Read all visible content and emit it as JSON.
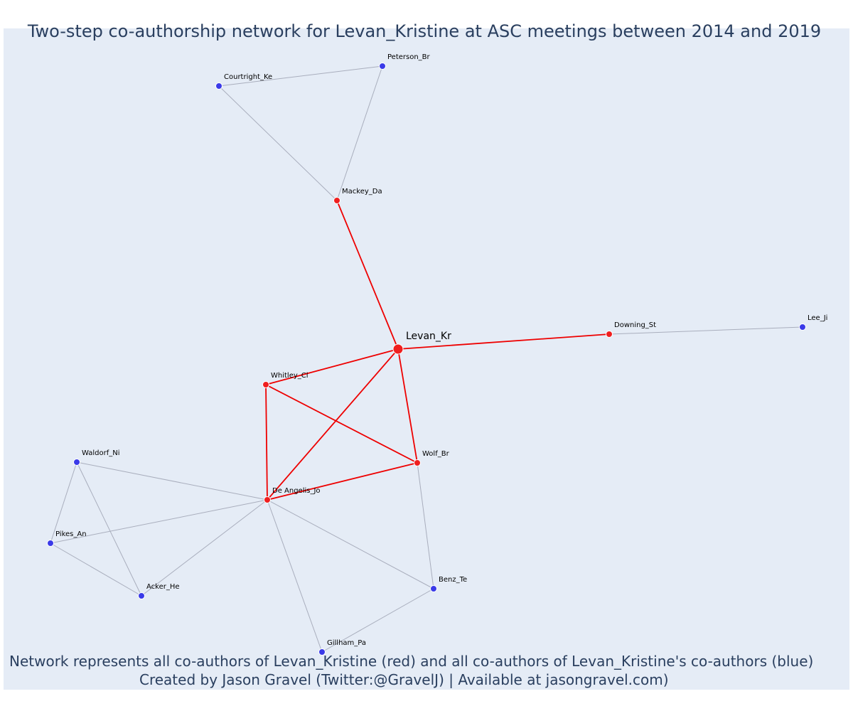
{
  "title": "Two-step co-authorship network for Levan_Kristine at ASC meetings between 2014 and 2019",
  "caption": {
    "line1": "Network represents all co-authors of Levan_Kristine (red) and all co-authors of Levan_Kristine's co-authors (blue)",
    "line2": "Created by Jason Gravel (Twitter:@GravelJ) | Available at jasongravel.com)"
  },
  "colors": {
    "background": "#e5ecf6",
    "coauthor": "#ef1f1f",
    "second_step": "#3a3ae8",
    "edge_direct": "#ee0000",
    "edge_indirect": "#a9aebd",
    "text": "#2a3f5f"
  },
  "nodes": [
    {
      "id": "Levan_Kr",
      "label": "Levan_Kr",
      "group": "focal"
    },
    {
      "id": "Mackey_Da",
      "label": "Mackey_Da",
      "group": "coauthor"
    },
    {
      "id": "Downing_St",
      "label": "Downing_St",
      "group": "coauthor"
    },
    {
      "id": "Whitley_Cl",
      "label": "Whitley_Cl",
      "group": "coauthor"
    },
    {
      "id": "Wolf_Br",
      "label": "Wolf_Br",
      "group": "coauthor"
    },
    {
      "id": "De Angelis_Jo",
      "label": "De Angelis_Jo",
      "group": "coauthor"
    },
    {
      "id": "Peterson_Br",
      "label": "Peterson_Br",
      "group": "second"
    },
    {
      "id": "Courtright_Ke",
      "label": "Courtright_Ke",
      "group": "second"
    },
    {
      "id": "Lee_Ji",
      "label": "Lee_Ji",
      "group": "second"
    },
    {
      "id": "Waldorf_Ni",
      "label": "Waldorf_Ni",
      "group": "second"
    },
    {
      "id": "Pikes_An",
      "label": "Pikes_An",
      "group": "second"
    },
    {
      "id": "Acker_He",
      "label": "Acker_He",
      "group": "second"
    },
    {
      "id": "Benz_Te",
      "label": "Benz_Te",
      "group": "second"
    },
    {
      "id": "Gillham_Pa",
      "label": "Gillham_Pa",
      "group": "second"
    }
  ],
  "edges": [
    {
      "source": "Levan_Kr",
      "target": "Mackey_Da",
      "type": "direct"
    },
    {
      "source": "Levan_Kr",
      "target": "Downing_St",
      "type": "direct"
    },
    {
      "source": "Levan_Kr",
      "target": "Whitley_Cl",
      "type": "direct"
    },
    {
      "source": "Levan_Kr",
      "target": "Wolf_Br",
      "type": "direct"
    },
    {
      "source": "Levan_Kr",
      "target": "De Angelis_Jo",
      "type": "direct"
    },
    {
      "source": "Whitley_Cl",
      "target": "Wolf_Br",
      "type": "direct"
    },
    {
      "source": "Whitley_Cl",
      "target": "De Angelis_Jo",
      "type": "direct"
    },
    {
      "source": "Wolf_Br",
      "target": "De Angelis_Jo",
      "type": "direct"
    },
    {
      "source": "Courtright_Ke",
      "target": "Peterson_Br",
      "type": "indirect"
    },
    {
      "source": "Courtright_Ke",
      "target": "Mackey_Da",
      "type": "indirect"
    },
    {
      "source": "Peterson_Br",
      "target": "Mackey_Da",
      "type": "indirect"
    },
    {
      "source": "Downing_St",
      "target": "Lee_Ji",
      "type": "indirect"
    },
    {
      "source": "Waldorf_Ni",
      "target": "De Angelis_Jo",
      "type": "indirect"
    },
    {
      "source": "Waldorf_Ni",
      "target": "Pikes_An",
      "type": "indirect"
    },
    {
      "source": "Waldorf_Ni",
      "target": "Acker_He",
      "type": "indirect"
    },
    {
      "source": "Pikes_An",
      "target": "De Angelis_Jo",
      "type": "indirect"
    },
    {
      "source": "Pikes_An",
      "target": "Acker_He",
      "type": "indirect"
    },
    {
      "source": "Acker_He",
      "target": "De Angelis_Jo",
      "type": "indirect"
    },
    {
      "source": "De Angelis_Jo",
      "target": "Benz_Te",
      "type": "indirect"
    },
    {
      "source": "De Angelis_Jo",
      "target": "Gillham_Pa",
      "type": "indirect"
    },
    {
      "source": "Wolf_Br",
      "target": "Benz_Te",
      "type": "indirect"
    },
    {
      "source": "Benz_Te",
      "target": "Gillham_Pa",
      "type": "indirect"
    }
  ]
}
